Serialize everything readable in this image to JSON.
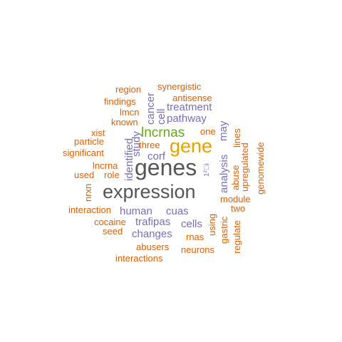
{
  "word_cloud": {
    "colors": {
      "orange": "#d95f02",
      "purple": "#7570b3",
      "gray": "#555555",
      "green": "#66a61e",
      "gold": "#e6a000"
    },
    "words": [
      {
        "text": "expression",
        "weight": 27,
        "color": "gray",
        "rotated": false
      },
      {
        "text": "genes",
        "weight": 32,
        "color": "gray",
        "rotated": false
      },
      {
        "text": "gene",
        "weight": 27,
        "color": "gold",
        "rotated": false
      },
      {
        "text": "lncrnas",
        "weight": 19,
        "color": "green",
        "rotated": false
      },
      {
        "text": "synergistic",
        "weight": 13,
        "color": "orange",
        "rotated": false
      },
      {
        "text": "region",
        "weight": 13,
        "color": "orange",
        "rotated": false
      },
      {
        "text": "antisense",
        "weight": 13,
        "color": "orange",
        "rotated": false
      },
      {
        "text": "findings",
        "weight": 13,
        "color": "orange",
        "rotated": false
      },
      {
        "text": "treatment",
        "weight": 15,
        "color": "purple",
        "rotated": false
      },
      {
        "text": "lmcn",
        "weight": 13,
        "color": "orange",
        "rotated": false
      },
      {
        "text": "pathway",
        "weight": 15,
        "color": "purple",
        "rotated": false
      },
      {
        "text": "known",
        "weight": 13,
        "color": "orange",
        "rotated": false
      },
      {
        "text": "one",
        "weight": 13,
        "color": "orange",
        "rotated": false
      },
      {
        "text": "xist",
        "weight": 13,
        "color": "orange",
        "rotated": false
      },
      {
        "text": "particle",
        "weight": 13,
        "color": "orange",
        "rotated": false
      },
      {
        "text": "significant",
        "weight": 13,
        "color": "orange",
        "rotated": false
      },
      {
        "text": "three",
        "weight": 13,
        "color": "orange",
        "rotated": false
      },
      {
        "text": "corf",
        "weight": 15,
        "color": "purple",
        "rotated": false
      },
      {
        "text": "lncrna",
        "weight": 13,
        "color": "orange",
        "rotated": false
      },
      {
        "text": "used",
        "weight": 13,
        "color": "orange",
        "rotated": false
      },
      {
        "text": "role",
        "weight": 13,
        "color": "orange",
        "rotated": false
      },
      {
        "text": "module",
        "weight": 13,
        "color": "orange",
        "rotated": false
      },
      {
        "text": "two",
        "weight": 13,
        "color": "orange",
        "rotated": false
      },
      {
        "text": "interaction",
        "weight": 13,
        "color": "orange",
        "rotated": false
      },
      {
        "text": "human",
        "weight": 15,
        "color": "purple",
        "rotated": false
      },
      {
        "text": "cuas",
        "weight": 15,
        "color": "purple",
        "rotated": false
      },
      {
        "text": "cocaine",
        "weight": 13,
        "color": "orange",
        "rotated": false
      },
      {
        "text": "trafipas",
        "weight": 15,
        "color": "purple",
        "rotated": false
      },
      {
        "text": "cells",
        "weight": 15,
        "color": "purple",
        "rotated": false
      },
      {
        "text": "seed",
        "weight": 13,
        "color": "orange",
        "rotated": false
      },
      {
        "text": "changes",
        "weight": 15,
        "color": "purple",
        "rotated": false
      },
      {
        "text": "rnas",
        "weight": 13,
        "color": "orange",
        "rotated": false
      },
      {
        "text": "abusers",
        "weight": 13,
        "color": "orange",
        "rotated": false
      },
      {
        "text": "neurons",
        "weight": 13,
        "color": "orange",
        "rotated": false
      },
      {
        "text": "interactions",
        "weight": 13,
        "color": "orange",
        "rotated": false
      },
      {
        "text": "cancer",
        "weight": 15,
        "color": "purple",
        "rotated": true
      },
      {
        "text": "cell",
        "weight": 15,
        "color": "purple",
        "rotated": true
      },
      {
        "text": "study",
        "weight": 15,
        "color": "purple",
        "rotated": true
      },
      {
        "text": "identified",
        "weight": 15,
        "color": "purple",
        "rotated": true
      },
      {
        "text": "nrxn",
        "weight": 13,
        "color": "orange",
        "rotated": true
      },
      {
        "text": "may",
        "weight": 15,
        "color": "purple",
        "rotated": true
      },
      {
        "text": "analysis",
        "weight": 15,
        "color": "purple",
        "rotated": true
      },
      {
        "text": "lines",
        "weight": 13,
        "color": "orange",
        "rotated": true
      },
      {
        "text": "abuse",
        "weight": 13,
        "color": "orange",
        "rotated": true
      },
      {
        "text": "upregulated",
        "weight": 13,
        "color": "orange",
        "rotated": true
      },
      {
        "text": "genomewide",
        "weight": 13,
        "color": "orange",
        "rotated": true
      },
      {
        "text": "using",
        "weight": 13,
        "color": "orange",
        "rotated": true
      },
      {
        "text": "gastric",
        "weight": 13,
        "color": "orange",
        "rotated": true
      },
      {
        "text": "regulate",
        "weight": 13,
        "color": "orange",
        "rotated": true
      },
      {
        "text": "1²⃣i",
        "weight": 10,
        "color": "purple",
        "rotated": true
      }
    ]
  }
}
